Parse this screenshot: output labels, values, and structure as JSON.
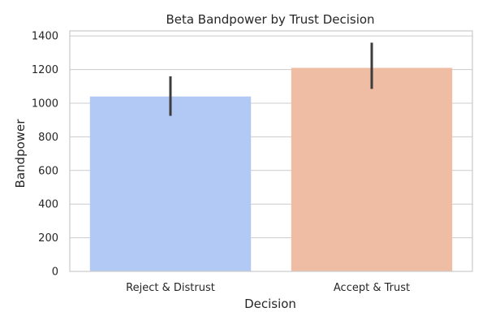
{
  "chart_data": {
    "type": "bar",
    "title": "Beta Bandpower by Trust Decision",
    "xlabel": "Decision",
    "ylabel": "Bandpower",
    "categories": [
      "Reject & Distrust",
      "Accept & Trust"
    ],
    "values": [
      1040,
      1210
    ],
    "error_low": [
      925,
      1085
    ],
    "error_high": [
      1160,
      1360
    ],
    "bar_colors": [
      "#b3c9f5",
      "#efbca4"
    ],
    "error_color": "#3d3d3d",
    "ylim": [
      0,
      1430
    ],
    "yticks": [
      0,
      200,
      400,
      600,
      800,
      1000,
      1200,
      1400
    ],
    "grid": true
  }
}
